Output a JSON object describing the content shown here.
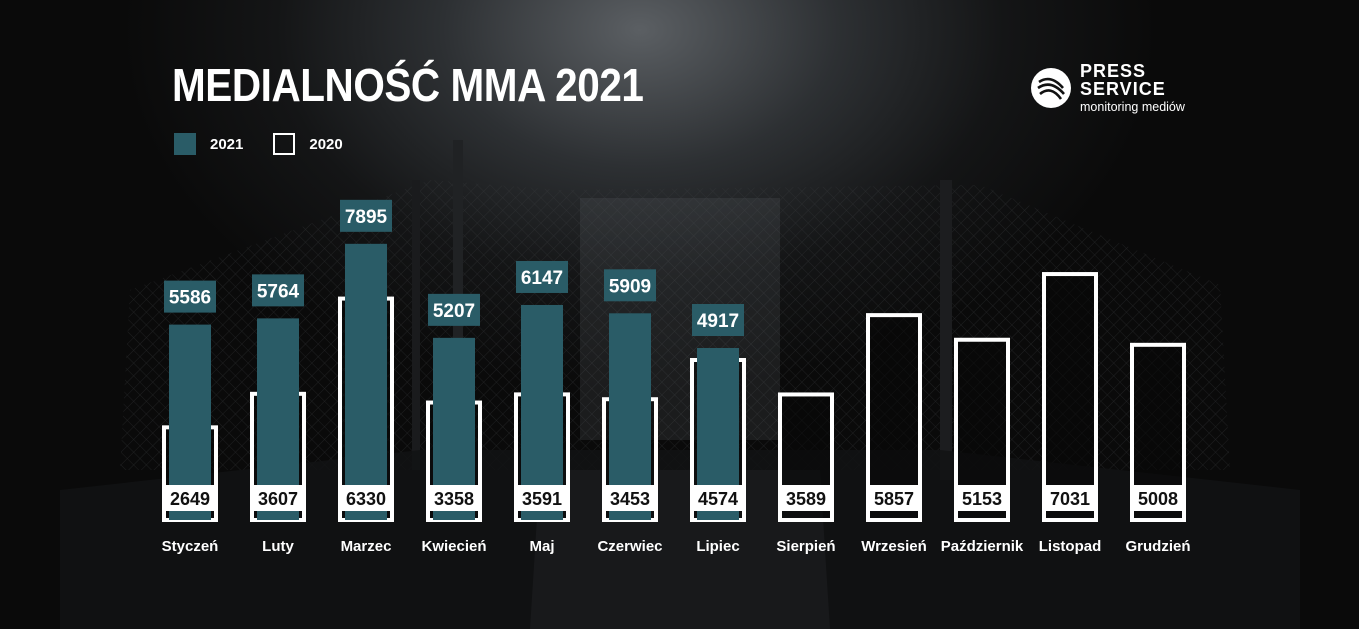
{
  "title": "MEDIALNOŚĆ MMA 2021",
  "logo": {
    "line1": "PRESS",
    "line2": "SERVICE",
    "line3": "monitoring mediów"
  },
  "colors": {
    "series_2021": "#2a5c67",
    "series_2020_outline": "#ffffff",
    "background": "#0a0a0a",
    "text": "#ffffff"
  },
  "chart_data": {
    "type": "bar",
    "title": "MEDIALNOŚĆ MMA 2021",
    "categories": [
      "Styczeń",
      "Luty",
      "Marzec",
      "Kwiecień",
      "Maj",
      "Czerwiec",
      "Lipiec",
      "Sierpień",
      "Wrzesień",
      "Październik",
      "Listopad",
      "Grudzień"
    ],
    "series": [
      {
        "name": "2021",
        "values": [
          5586,
          5764,
          7895,
          5207,
          6147,
          5909,
          4917,
          null,
          null,
          null,
          null,
          null
        ]
      },
      {
        "name": "2020",
        "values": [
          2649,
          3607,
          6330,
          3358,
          3591,
          3453,
          4574,
          3589,
          5857,
          5153,
          7031,
          5008
        ]
      }
    ],
    "legend": "top-left",
    "grid": false,
    "axes_visible": false
  }
}
